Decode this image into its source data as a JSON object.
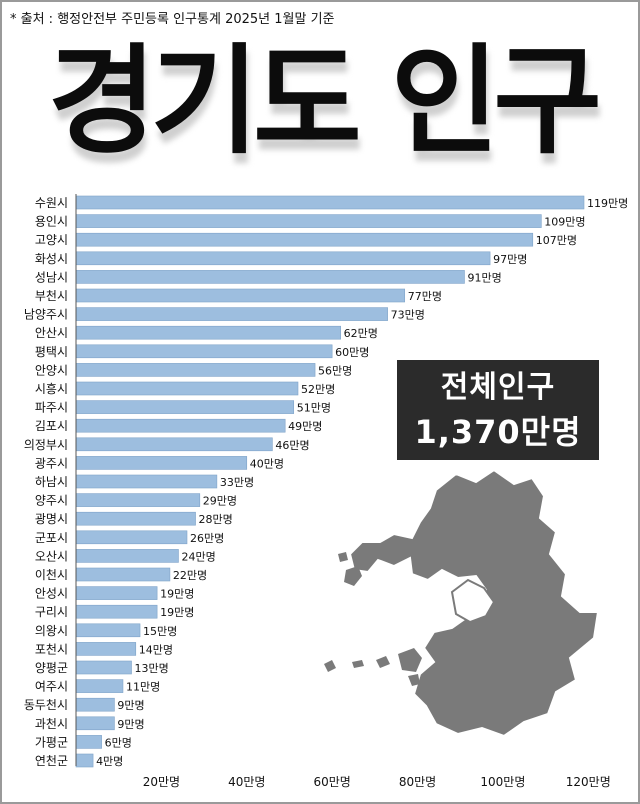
{
  "source": "* 출처 : 행정안전부 주민등록 인구통계 2025년 1월말 기준",
  "title": "경기도 인구",
  "total": {
    "label": "전체인구",
    "value": "1,370만명"
  },
  "colors": {
    "bar": "#9dbedf",
    "bar_edge": "#7fa3c8",
    "text": "#111111",
    "box": "#2b2b2b",
    "map_fill": "#7a7a7a",
    "map_stroke": "#ffffff"
  },
  "icons": [
    "gyeonggi-map-icon"
  ],
  "chart_data": {
    "type": "bar",
    "orientation": "horizontal",
    "unit_suffix": "만명",
    "categories": [
      "수원시",
      "용인시",
      "고양시",
      "화성시",
      "성남시",
      "부천시",
      "남양주시",
      "안산시",
      "평택시",
      "안양시",
      "시흥시",
      "파주시",
      "김포시",
      "의정부시",
      "광주시",
      "하남시",
      "양주시",
      "광명시",
      "군포시",
      "오산시",
      "이천시",
      "안성시",
      "구리시",
      "의왕시",
      "포천시",
      "양평군",
      "여주시",
      "동두천시",
      "과천시",
      "가평군",
      "연천군"
    ],
    "values": [
      119,
      109,
      107,
      97,
      91,
      77,
      73,
      62,
      60,
      56,
      52,
      51,
      49,
      46,
      40,
      33,
      29,
      28,
      26,
      24,
      22,
      19,
      19,
      15,
      14,
      13,
      11,
      9,
      9,
      6,
      4
    ],
    "value_labels": [
      "119만명",
      "109만명",
      "107만명",
      "97만명",
      "91만명",
      "77만명",
      "73만명",
      "62만명",
      "60만명",
      "56만명",
      "52만명",
      "51만명",
      "49만명",
      "46만명",
      "40만명",
      "33만명",
      "29만명",
      "28만명",
      "26만명",
      "24만명",
      "22만명",
      "19만명",
      "19만명",
      "15만명",
      "14만명",
      "13만명",
      "11만명",
      "9만명",
      "9만명",
      "6만명",
      "4만명"
    ],
    "xticks": [
      20,
      40,
      60,
      80,
      100,
      120
    ],
    "xtick_labels": [
      "20만명",
      "40만명",
      "60만명",
      "80만명",
      "100만명",
      "120만명"
    ],
    "xlim": [
      0,
      122
    ],
    "grid": false,
    "legend": "none"
  }
}
